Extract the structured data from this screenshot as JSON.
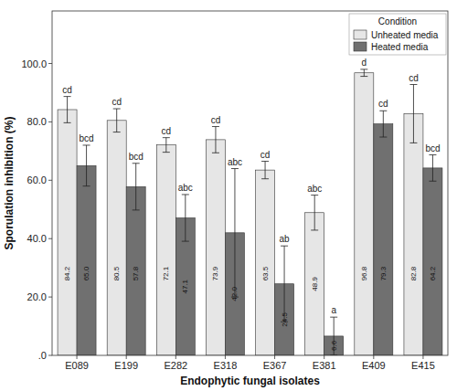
{
  "chart_data": {
    "type": "bar",
    "x_label": "Endophytic fungal isolates",
    "y_label": "Sporulation inhibition (%)",
    "legend_title": "Condition",
    "legend": "upper right",
    "data_labels": true,
    "grid": false,
    "categories": [
      "E089",
      "E199",
      "E282",
      "E318",
      "E367",
      "E381",
      "E409",
      "E415"
    ],
    "series": [
      {
        "name": "Unheated media",
        "color": "#e6e6e6",
        "values": [
          84.2,
          80.5,
          72.1,
          73.9,
          63.5,
          48.9,
          96.8,
          82.8
        ],
        "value_labels": [
          "84.2",
          "80.5",
          "72.1",
          "73.9",
          "63.5",
          "48.9",
          "96.8",
          "82.8"
        ],
        "errors": [
          4.5,
          4,
          2.5,
          4.5,
          3,
          6,
          1.2,
          10
        ],
        "letters": [
          "cd",
          "cd",
          "cd",
          "cd",
          "cd",
          "abc",
          "d",
          "cd"
        ]
      },
      {
        "name": "Heated media",
        "color": "#707070",
        "values": [
          65.0,
          57.8,
          47.1,
          42.0,
          24.5,
          6.6,
          79.3,
          64.2
        ],
        "value_labels": [
          "65.0",
          "57.8",
          "47.1",
          "42.0",
          "24.5",
          "6.6",
          "79.3",
          "64.2"
        ],
        "errors": [
          7,
          8,
          8,
          22,
          13,
          6.5,
          4.5,
          4.5
        ],
        "letters": [
          "bcd",
          "bcd",
          "abc",
          "abc",
          "ab",
          "a",
          "cd",
          "bcd"
        ]
      }
    ],
    "ylim": [
      0,
      118
    ],
    "yticks": [
      {
        "value": 0,
        "label": ".0"
      },
      {
        "value": 20,
        "label": "20.0"
      },
      {
        "value": 40,
        "label": "40.0"
      },
      {
        "value": 60,
        "label": "60.0"
      },
      {
        "value": 80,
        "label": "80.0"
      },
      {
        "value": 100,
        "label": "100.0"
      }
    ]
  }
}
